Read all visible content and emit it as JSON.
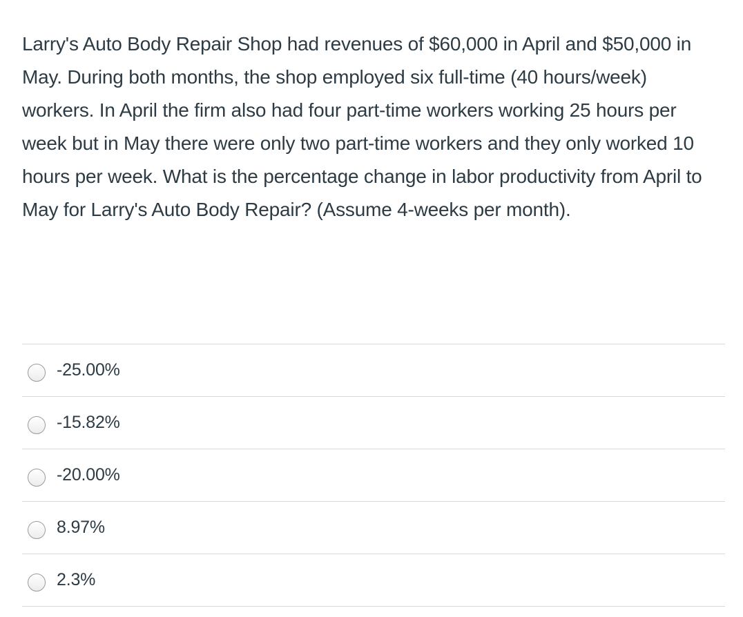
{
  "question": {
    "text": "Larry's Auto Body Repair Shop had revenues of $60,000 in April and $50,000 in May. During both months, the shop employed six full-time (40 hours/week) workers. In April the firm also had four part-time workers working 25 hours per week but in May there were only two part-time workers and they only worked 10 hours per week. What is the percentage change in labor productivity from April to May for Larry's Auto Body Repair? (Assume 4-weeks per month)."
  },
  "answers": [
    {
      "label": "-25.00%"
    },
    {
      "label": "-15.82%"
    },
    {
      "label": "-20.00%"
    },
    {
      "label": "8.97%"
    },
    {
      "label": "2.3%"
    }
  ]
}
